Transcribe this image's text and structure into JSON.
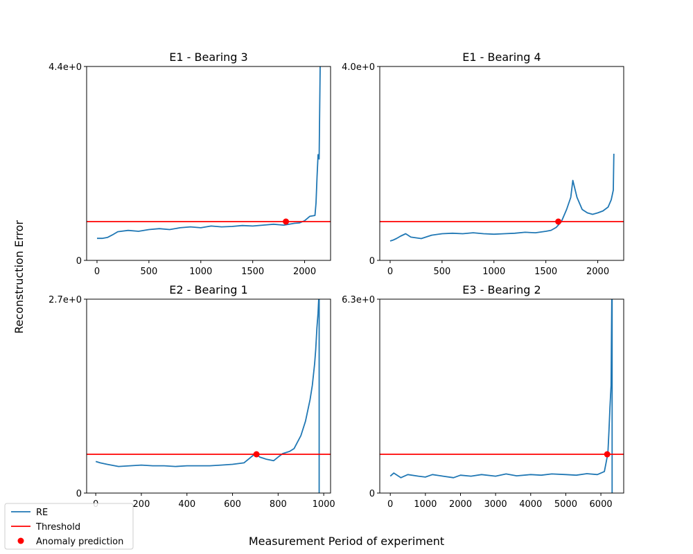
{
  "figure": {
    "ylabel": "Reconstruction Error",
    "xlabel": "Measurement Period of experiment"
  },
  "legend": {
    "placement": "bottom-left",
    "entries": [
      {
        "label": "RE",
        "kind": "line",
        "color": "#1f77b4"
      },
      {
        "label": "Threshold",
        "kind": "line",
        "color": "#ff0000"
      },
      {
        "label": "Anomaly prediction",
        "kind": "marker",
        "color": "#ff0000"
      }
    ]
  },
  "colors": {
    "re": "#1f77b4",
    "threshold": "#ff0000",
    "prediction": "#ff0000"
  },
  "chart_data": [
    {
      "type": "line",
      "title": "E1 - Bearing 3",
      "xlim": [
        -100,
        2250
      ],
      "ylim": [
        0,
        4.4
      ],
      "xticks": [
        0,
        500,
        1000,
        1500,
        2000
      ],
      "yticks": [
        0,
        4.4
      ],
      "ytick_labels": [
        "0",
        "4.4e+0"
      ],
      "grid": false,
      "threshold": 0.88,
      "anomaly_prediction": {
        "x": 1820,
        "y": 0.88
      },
      "vline_x": null,
      "series": [
        {
          "name": "RE",
          "x": [
            0,
            50,
            100,
            150,
            200,
            300,
            400,
            500,
            600,
            700,
            800,
            900,
            1000,
            1100,
            1200,
            1300,
            1400,
            1500,
            1600,
            1700,
            1800,
            1900,
            1950,
            2000,
            2050,
            2100,
            2110,
            2120,
            2130,
            2140,
            2150
          ],
          "y": [
            0.5,
            0.5,
            0.52,
            0.58,
            0.65,
            0.68,
            0.66,
            0.7,
            0.72,
            0.7,
            0.74,
            0.76,
            0.74,
            0.78,
            0.76,
            0.77,
            0.79,
            0.78,
            0.8,
            0.82,
            0.8,
            0.84,
            0.85,
            0.9,
            1.0,
            1.02,
            1.3,
            1.9,
            2.4,
            2.3,
            4.4
          ]
        }
      ]
    },
    {
      "type": "line",
      "title": "E1 - Bearing 4",
      "xlim": [
        -100,
        2250
      ],
      "ylim": [
        0,
        4.0
      ],
      "xticks": [
        0,
        500,
        1000,
        1500,
        2000
      ],
      "yticks": [
        0,
        4.0
      ],
      "ytick_labels": [
        "0",
        "4.0e+0"
      ],
      "grid": false,
      "threshold": 0.8,
      "anomaly_prediction": {
        "x": 1620,
        "y": 0.8
      },
      "vline_x": null,
      "series": [
        {
          "name": "RE",
          "x": [
            0,
            30,
            60,
            100,
            150,
            200,
            300,
            400,
            500,
            600,
            700,
            800,
            900,
            1000,
            1100,
            1200,
            1300,
            1400,
            1500,
            1550,
            1600,
            1650,
            1700,
            1740,
            1760,
            1800,
            1850,
            1900,
            1950,
            2000,
            2050,
            2100,
            2130,
            2150,
            2155
          ],
          "y": [
            0.4,
            0.42,
            0.45,
            0.5,
            0.55,
            0.48,
            0.45,
            0.52,
            0.55,
            0.56,
            0.55,
            0.57,
            0.55,
            0.54,
            0.55,
            0.56,
            0.58,
            0.57,
            0.6,
            0.62,
            0.68,
            0.8,
            1.05,
            1.3,
            1.65,
            1.3,
            1.05,
            0.98,
            0.95,
            0.98,
            1.02,
            1.1,
            1.25,
            1.45,
            2.2
          ]
        }
      ]
    },
    {
      "type": "line",
      "title": "E2 - Bearing 1",
      "xlim": [
        -40,
        1030
      ],
      "ylim": [
        0,
        2.7
      ],
      "xticks": [
        0,
        200,
        400,
        600,
        800,
        1000
      ],
      "yticks": [
        0,
        2.7
      ],
      "ytick_labels": [
        "0",
        "2.7e+0"
      ],
      "grid": false,
      "threshold": 0.54,
      "anomaly_prediction": {
        "x": 705,
        "y": 0.54
      },
      "vline_x": 980,
      "series": [
        {
          "name": "RE",
          "x": [
            0,
            20,
            50,
            100,
            150,
            200,
            250,
            300,
            350,
            400,
            450,
            500,
            550,
            600,
            650,
            700,
            720,
            750,
            780,
            800,
            820,
            850,
            870,
            900,
            920,
            940,
            950,
            960,
            965,
            970,
            975,
            978
          ],
          "y": [
            0.44,
            0.42,
            0.4,
            0.37,
            0.38,
            0.39,
            0.38,
            0.38,
            0.37,
            0.38,
            0.38,
            0.38,
            0.39,
            0.4,
            0.42,
            0.55,
            0.5,
            0.47,
            0.45,
            0.5,
            0.55,
            0.58,
            0.62,
            0.8,
            1.0,
            1.3,
            1.5,
            1.8,
            2.0,
            2.3,
            2.5,
            2.7
          ]
        }
      ]
    },
    {
      "type": "line",
      "title": "E3 - Bearing 2",
      "xlim": [
        -300,
        6650
      ],
      "ylim": [
        0,
        6.3
      ],
      "xticks": [
        0,
        1000,
        2000,
        3000,
        4000,
        5000,
        6000
      ],
      "yticks": [
        0,
        6.3
      ],
      "ytick_labels": [
        "0",
        "6.3e+0"
      ],
      "grid": false,
      "threshold": 1.26,
      "anomaly_prediction": {
        "x": 6180,
        "y": 1.26
      },
      "vline_x": 6320,
      "series": [
        {
          "name": "RE",
          "x": [
            0,
            100,
            300,
            500,
            800,
            1000,
            1200,
            1500,
            1800,
            2000,
            2300,
            2600,
            3000,
            3300,
            3600,
            4000,
            4300,
            4600,
            5000,
            5300,
            5600,
            5900,
            6100,
            6150,
            6200,
            6230,
            6260,
            6290,
            6300,
            6310
          ],
          "y": [
            0.55,
            0.65,
            0.5,
            0.6,
            0.55,
            0.52,
            0.6,
            0.55,
            0.5,
            0.58,
            0.55,
            0.6,
            0.55,
            0.62,
            0.56,
            0.6,
            0.58,
            0.62,
            0.6,
            0.58,
            0.63,
            0.6,
            0.7,
            1.0,
            1.3,
            2.0,
            2.8,
            3.5,
            5.0,
            6.3
          ]
        }
      ]
    }
  ]
}
